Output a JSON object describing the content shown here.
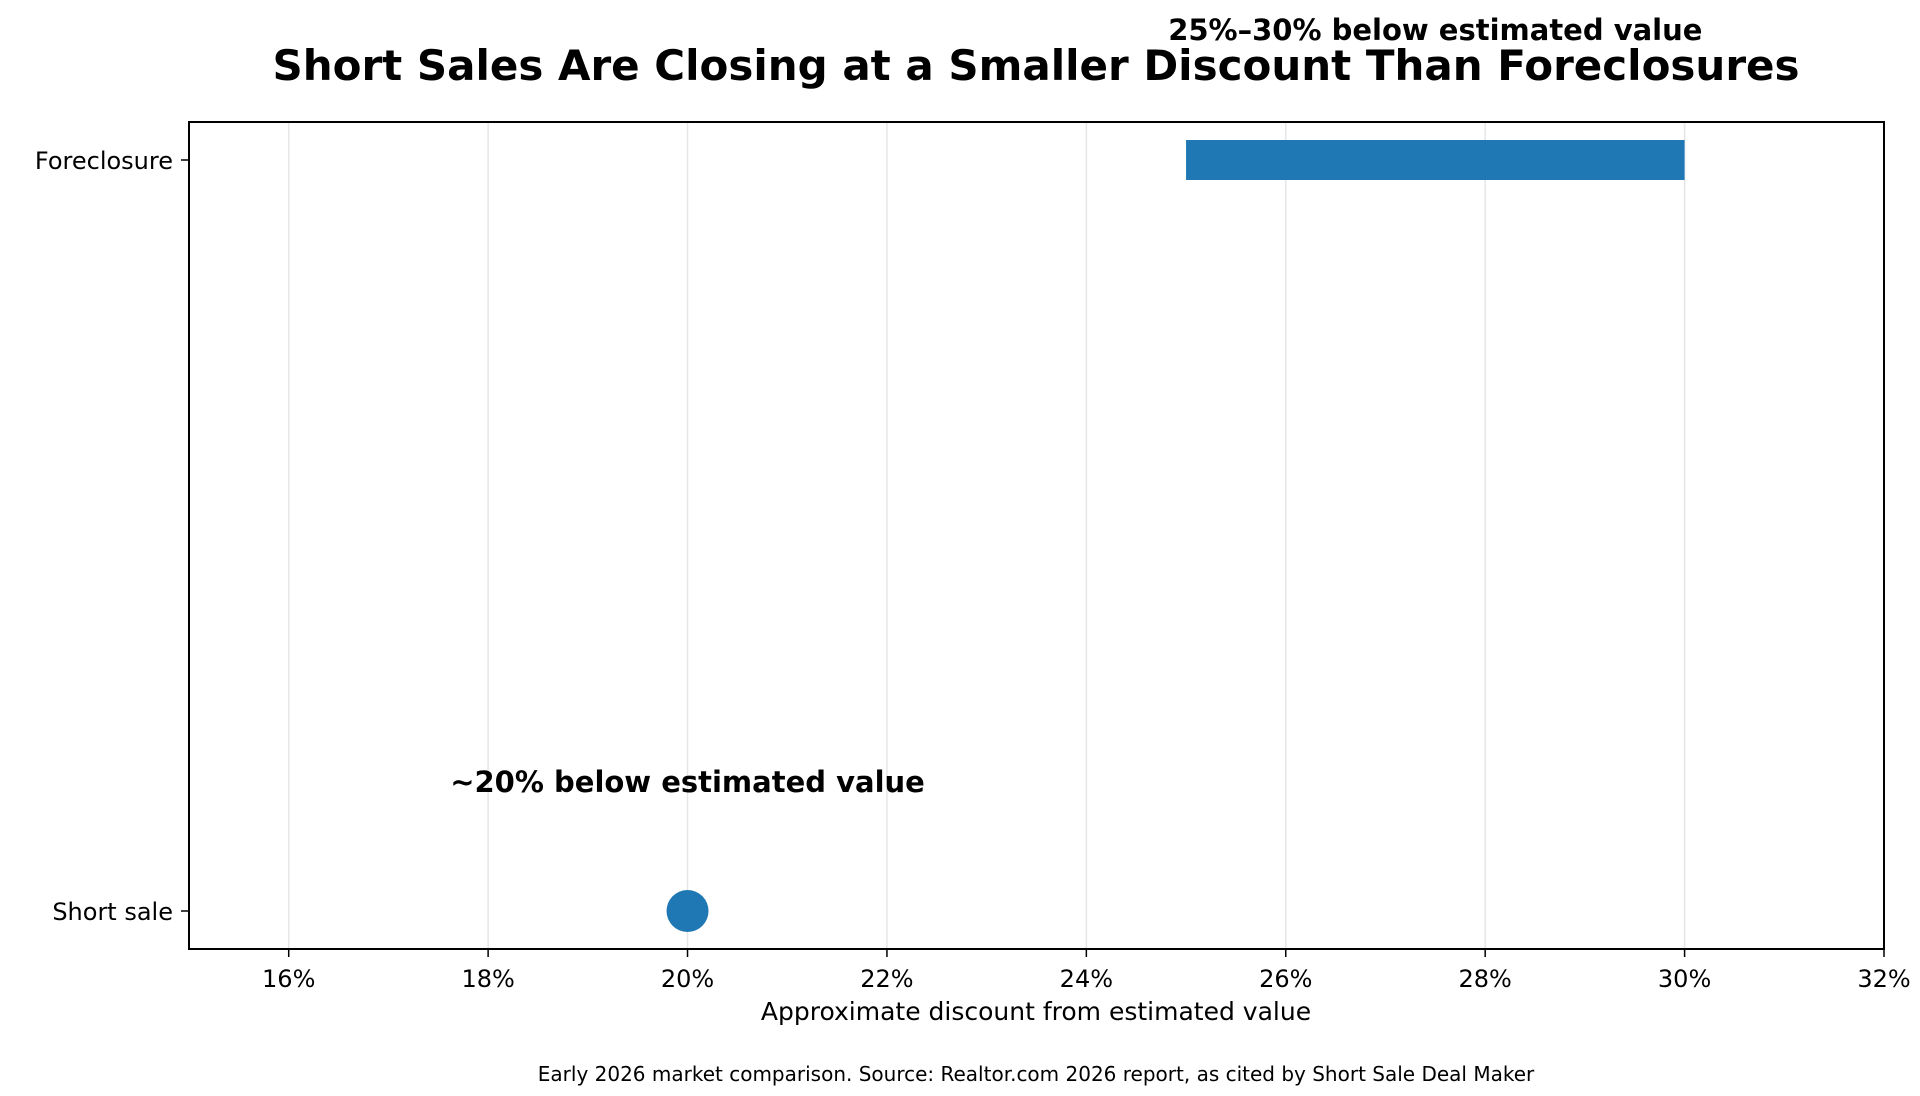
{
  "chart_data": {
    "type": "range",
    "title": "Short Sales Are Closing at a Smaller Discount Than Foreclosures",
    "xlabel": "Approximate discount from estimated value",
    "ylabel": "",
    "xlim": [
      15,
      32
    ],
    "x_unit": "%",
    "x_ticks": [
      16,
      18,
      20,
      22,
      24,
      26,
      28,
      30,
      32
    ],
    "x_tick_labels": [
      "16%",
      "18%",
      "20%",
      "22%",
      "24%",
      "26%",
      "28%",
      "30%",
      "32%"
    ],
    "categories": [
      "Foreclosure",
      "Short sale"
    ],
    "series": [
      {
        "category": "Foreclosure",
        "mark": "range-bar",
        "low": 25,
        "high": 30,
        "annotation": "25%–30% below estimated value"
      },
      {
        "category": "Short sale",
        "mark": "point",
        "value": 20,
        "annotation": "~20% below estimated value"
      }
    ],
    "grid": "vertical",
    "color": "#1f77b4",
    "footnote": "Early 2026 market comparison. Source: Realtor.com 2026 report, as cited by Short Sale Deal Maker"
  }
}
